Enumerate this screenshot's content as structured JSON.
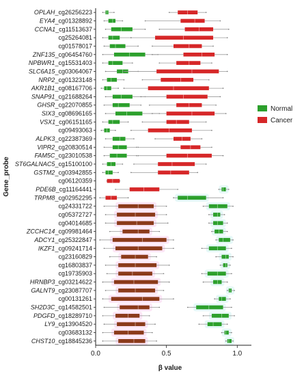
{
  "chart_data": {
    "type": "boxplot",
    "orientation": "horizontal",
    "xlabel": "β value",
    "ylabel": "Gene_probe",
    "xlim": [
      0,
      1.1
    ],
    "xticks": [
      0.0,
      0.5,
      1.0
    ],
    "xtick_labels": [
      "0.0",
      "0.5",
      "1.0"
    ],
    "grid": false,
    "legend_position": "right",
    "series": [
      {
        "name": "Normal",
        "color": "#2ca02c"
      },
      {
        "name": "Cancer",
        "color": "#d62728"
      }
    ],
    "categories": [
      {
        "gene": "OPLAH",
        "probe": "cg26256223",
        "label": "OPLAH_cg26256223"
      },
      {
        "gene": "EYA4",
        "probe": "cg01328892",
        "label": "EYA4_cg01328892"
      },
      {
        "gene": "CCNA1",
        "probe": "cg11513637",
        "label": "CCNA1_cg11513637"
      },
      {
        "gene": "",
        "probe": "cg25264081",
        "label": "cg25264081"
      },
      {
        "gene": "",
        "probe": "cg01578017",
        "label": "cg01578017"
      },
      {
        "gene": "ZNF135",
        "probe": "cg06454760",
        "label": "ZNF135_cg06454760"
      },
      {
        "gene": "NPBWR1",
        "probe": "cg15531403",
        "label": "NPBWR1_cg15531403"
      },
      {
        "gene": "SLC6A15",
        "probe": "cg03064067",
        "label": "SLC6A15_cg03064067"
      },
      {
        "gene": "NRP2",
        "probe": "cg01323148",
        "label": "NRP2_cg01323148"
      },
      {
        "gene": "AKR1B1",
        "probe": "cg08167706",
        "label": "AKR1B1_cg08167706"
      },
      {
        "gene": "SNAP91",
        "probe": "cg21688264",
        "label": "SNAP91_cg21688264"
      },
      {
        "gene": "GHSR",
        "probe": "cg22070855",
        "label": "GHSR_cg22070855"
      },
      {
        "gene": "SIX3",
        "probe": "cg08696165",
        "label": "SIX3_cg08696165"
      },
      {
        "gene": "VSX1",
        "probe": "cg06151165",
        "label": "VSX1_cg06151165"
      },
      {
        "gene": "",
        "probe": "cg09493063",
        "label": "cg09493063"
      },
      {
        "gene": "ALPK3",
        "probe": "cg22387369",
        "label": "ALPK3_cg22387369"
      },
      {
        "gene": "VIPR2",
        "probe": "cg20830514",
        "label": "VIPR2_cg20830514"
      },
      {
        "gene": "FAM5C",
        "probe": "cg23010538",
        "label": "FAM5C_cg23010538"
      },
      {
        "gene": "ST6GALNAC5",
        "probe": "cg15100100",
        "label": "ST6GALNAC5_cg15100100"
      },
      {
        "gene": "GSTM2",
        "probe": "cg03942855",
        "label": "GSTM2_cg03942855"
      },
      {
        "gene": "",
        "probe": "cg06120359",
        "label": "cg06120359"
      },
      {
        "gene": "PDE6B",
        "probe": "cg11164441",
        "label": "PDE6B_cg11164441"
      },
      {
        "gene": "TRPM8",
        "probe": "cg02952295",
        "label": "TRPM8_cg02952295"
      },
      {
        "gene": "",
        "probe": "cg24331722",
        "label": "cg24331722"
      },
      {
        "gene": "",
        "probe": "cg05372727",
        "label": "cg05372727"
      },
      {
        "gene": "",
        "probe": "cg04014685",
        "label": "cg04014685"
      },
      {
        "gene": "ZCCHC14",
        "probe": "cg09981464",
        "label": "ZCCHC14_cg09981464"
      },
      {
        "gene": "ADCY1",
        "probe": "cg25322847",
        "label": "ADCY1_cg25322847"
      },
      {
        "gene": "IKZF1",
        "probe": "cg09241714",
        "label": "IKZF1_cg09241714"
      },
      {
        "gene": "",
        "probe": "cg23160829",
        "label": "cg23160829"
      },
      {
        "gene": "",
        "probe": "cg16803837",
        "label": "cg16803837"
      },
      {
        "gene": "",
        "probe": "cg19735903",
        "label": "cg19735903"
      },
      {
        "gene": "HRNBP3",
        "probe": "cg03214622",
        "label": "HRNBP3_cg03214622"
      },
      {
        "gene": "GALNT9",
        "probe": "cg23087707",
        "label": "GALNT9_cg23087707"
      },
      {
        "gene": "",
        "probe": "cg00131261",
        "label": "cg00131261"
      },
      {
        "gene": "SH2D3C",
        "probe": "cg14582501",
        "label": "SH2D3C_cg14582501"
      },
      {
        "gene": "PDGFD",
        "probe": "cg18289710",
        "label": "PDGFD_cg18289710"
      },
      {
        "gene": "LY9",
        "probe": "cg13904520",
        "label": "LY9_cg13904520"
      },
      {
        "gene": "",
        "probe": "cg03683132",
        "label": "cg03683132"
      },
      {
        "gene": "CHST10",
        "probe": "cg18845236",
        "label": "CHST10_cg18845236"
      }
    ],
    "boxes": {
      "Normal": [
        [
          0.05,
          0.07,
          0.08,
          0.09,
          0.13
        ],
        [
          0.06,
          0.09,
          0.12,
          0.14,
          0.19
        ],
        [
          0.07,
          0.11,
          0.18,
          0.26,
          0.35
        ],
        [
          0.05,
          0.09,
          0.12,
          0.17,
          0.25
        ],
        [
          0.06,
          0.1,
          0.14,
          0.21,
          0.3
        ],
        [
          0.05,
          0.13,
          0.24,
          0.35,
          0.44
        ],
        [
          0.05,
          0.09,
          0.12,
          0.19,
          0.26
        ],
        [
          0.07,
          0.15,
          0.19,
          0.23,
          0.3
        ],
        [
          0.05,
          0.08,
          0.11,
          0.15,
          0.2
        ],
        [
          0.04,
          0.06,
          0.08,
          0.11,
          0.16
        ],
        [
          0.07,
          0.12,
          0.18,
          0.26,
          0.35
        ],
        [
          0.06,
          0.12,
          0.16,
          0.24,
          0.32
        ],
        [
          0.07,
          0.14,
          0.22,
          0.33,
          0.45
        ],
        [
          0.05,
          0.09,
          0.12,
          0.17,
          0.23
        ],
        [
          0.04,
          0.06,
          0.08,
          0.1,
          0.14
        ],
        [
          0.07,
          0.12,
          0.17,
          0.21,
          0.27
        ],
        [
          0.06,
          0.12,
          0.16,
          0.22,
          0.29
        ],
        [
          0.06,
          0.1,
          0.15,
          0.22,
          0.29
        ],
        [
          0.05,
          0.08,
          0.11,
          0.14,
          0.19
        ],
        [
          0.05,
          0.07,
          0.09,
          0.12,
          0.16
        ],
        null,
        [
          0.87,
          0.89,
          0.9,
          0.92,
          0.94
        ],
        [
          0.55,
          0.58,
          0.65,
          0.78,
          0.9
        ],
        [
          0.76,
          0.8,
          0.86,
          0.93,
          0.97
        ],
        [
          0.8,
          0.83,
          0.86,
          0.88,
          0.91
        ],
        [
          0.8,
          0.83,
          0.86,
          0.9,
          0.93
        ],
        [
          0.82,
          0.84,
          0.87,
          0.9,
          0.93
        ],
        [
          0.85,
          0.87,
          0.9,
          0.95,
          0.97
        ],
        [
          0.75,
          0.8,
          0.86,
          0.92,
          0.96
        ],
        [
          0.85,
          0.89,
          0.92,
          0.94,
          0.97
        ],
        [
          0.88,
          0.9,
          0.92,
          0.93,
          0.95
        ],
        [
          0.75,
          0.79,
          0.86,
          0.92,
          0.96
        ],
        [
          0.76,
          0.83,
          0.86,
          0.89,
          0.93
        ],
        [
          0.93,
          0.94,
          0.95,
          0.96,
          0.98
        ],
        [
          0.84,
          0.87,
          0.89,
          0.92,
          0.95
        ],
        [
          0.65,
          0.71,
          0.8,
          0.9,
          0.96
        ],
        [
          0.76,
          0.82,
          0.89,
          0.94,
          0.98
        ],
        [
          0.73,
          0.79,
          0.83,
          0.89,
          0.93
        ],
        [
          0.89,
          0.91,
          0.92,
          0.94,
          0.96
        ],
        [
          0.92,
          0.93,
          0.94,
          0.96,
          0.97
        ]
      ],
      "Cancer": [
        [
          0.52,
          0.58,
          0.65,
          0.72,
          0.78
        ],
        [
          0.35,
          0.6,
          0.7,
          0.77,
          0.88
        ],
        [
          0.45,
          0.63,
          0.73,
          0.83,
          0.94
        ],
        [
          0.25,
          0.42,
          0.62,
          0.83,
          0.93
        ],
        [
          0.4,
          0.55,
          0.66,
          0.75,
          0.83
        ],
        [
          0.4,
          0.62,
          0.75,
          0.84,
          0.93
        ],
        [
          0.45,
          0.57,
          0.66,
          0.74,
          0.82
        ],
        [
          0.2,
          0.43,
          0.68,
          0.87,
          0.93
        ],
        [
          0.33,
          0.46,
          0.6,
          0.69,
          0.8
        ],
        [
          0.2,
          0.37,
          0.55,
          0.8,
          0.9
        ],
        [
          0.32,
          0.5,
          0.62,
          0.79,
          0.88
        ],
        [
          0.38,
          0.57,
          0.66,
          0.75,
          0.85
        ],
        [
          0.4,
          0.5,
          0.68,
          0.84,
          0.92
        ],
        [
          0.33,
          0.5,
          0.57,
          0.66,
          0.78
        ],
        [
          0.25,
          0.37,
          0.52,
          0.68,
          0.82
        ],
        [
          0.42,
          0.55,
          0.61,
          0.67,
          0.75
        ],
        [
          0.3,
          0.6,
          0.67,
          0.74,
          0.82
        ],
        [
          0.3,
          0.5,
          0.65,
          0.82,
          0.9
        ],
        [
          0.27,
          0.44,
          0.54,
          0.7,
          0.78
        ],
        [
          0.25,
          0.44,
          0.53,
          0.66,
          0.72
        ],
        [
          0.08,
          0.08,
          0.12,
          0.17,
          0.17
        ],
        [
          0.14,
          0.24,
          0.34,
          0.45,
          0.58
        ],
        [
          0.03,
          0.07,
          0.11,
          0.15,
          0.23
        ]
      ],
      "Cancer_hypo": [
        [
          0.06,
          0.16,
          0.3,
          0.41,
          0.5
        ],
        [
          0.07,
          0.15,
          0.28,
          0.42,
          0.5
        ],
        [
          0.07,
          0.15,
          0.29,
          0.41,
          0.51
        ],
        [
          0.1,
          0.19,
          0.3,
          0.38,
          0.45
        ],
        [
          0.03,
          0.12,
          0.33,
          0.5,
          0.55
        ],
        [
          0.06,
          0.14,
          0.3,
          0.47,
          0.55
        ],
        [
          0.1,
          0.18,
          0.28,
          0.37,
          0.43
        ],
        [
          0.07,
          0.16,
          0.28,
          0.43,
          0.52
        ],
        [
          0.08,
          0.16,
          0.26,
          0.4,
          0.48
        ],
        [
          0.05,
          0.13,
          0.27,
          0.44,
          0.52
        ],
        [
          0.07,
          0.16,
          0.28,
          0.42,
          0.48
        ],
        [
          0.05,
          0.11,
          0.33,
          0.45,
          0.55
        ],
        [
          0.06,
          0.17,
          0.3,
          0.38,
          0.45
        ],
        [
          0.05,
          0.14,
          0.23,
          0.31,
          0.38
        ],
        [
          0.06,
          0.15,
          0.28,
          0.35,
          0.42
        ],
        [
          0.05,
          0.13,
          0.23,
          0.34,
          0.4
        ],
        [
          0.05,
          0.16,
          0.27,
          0.35,
          0.43
        ]
      ]
    }
  }
}
